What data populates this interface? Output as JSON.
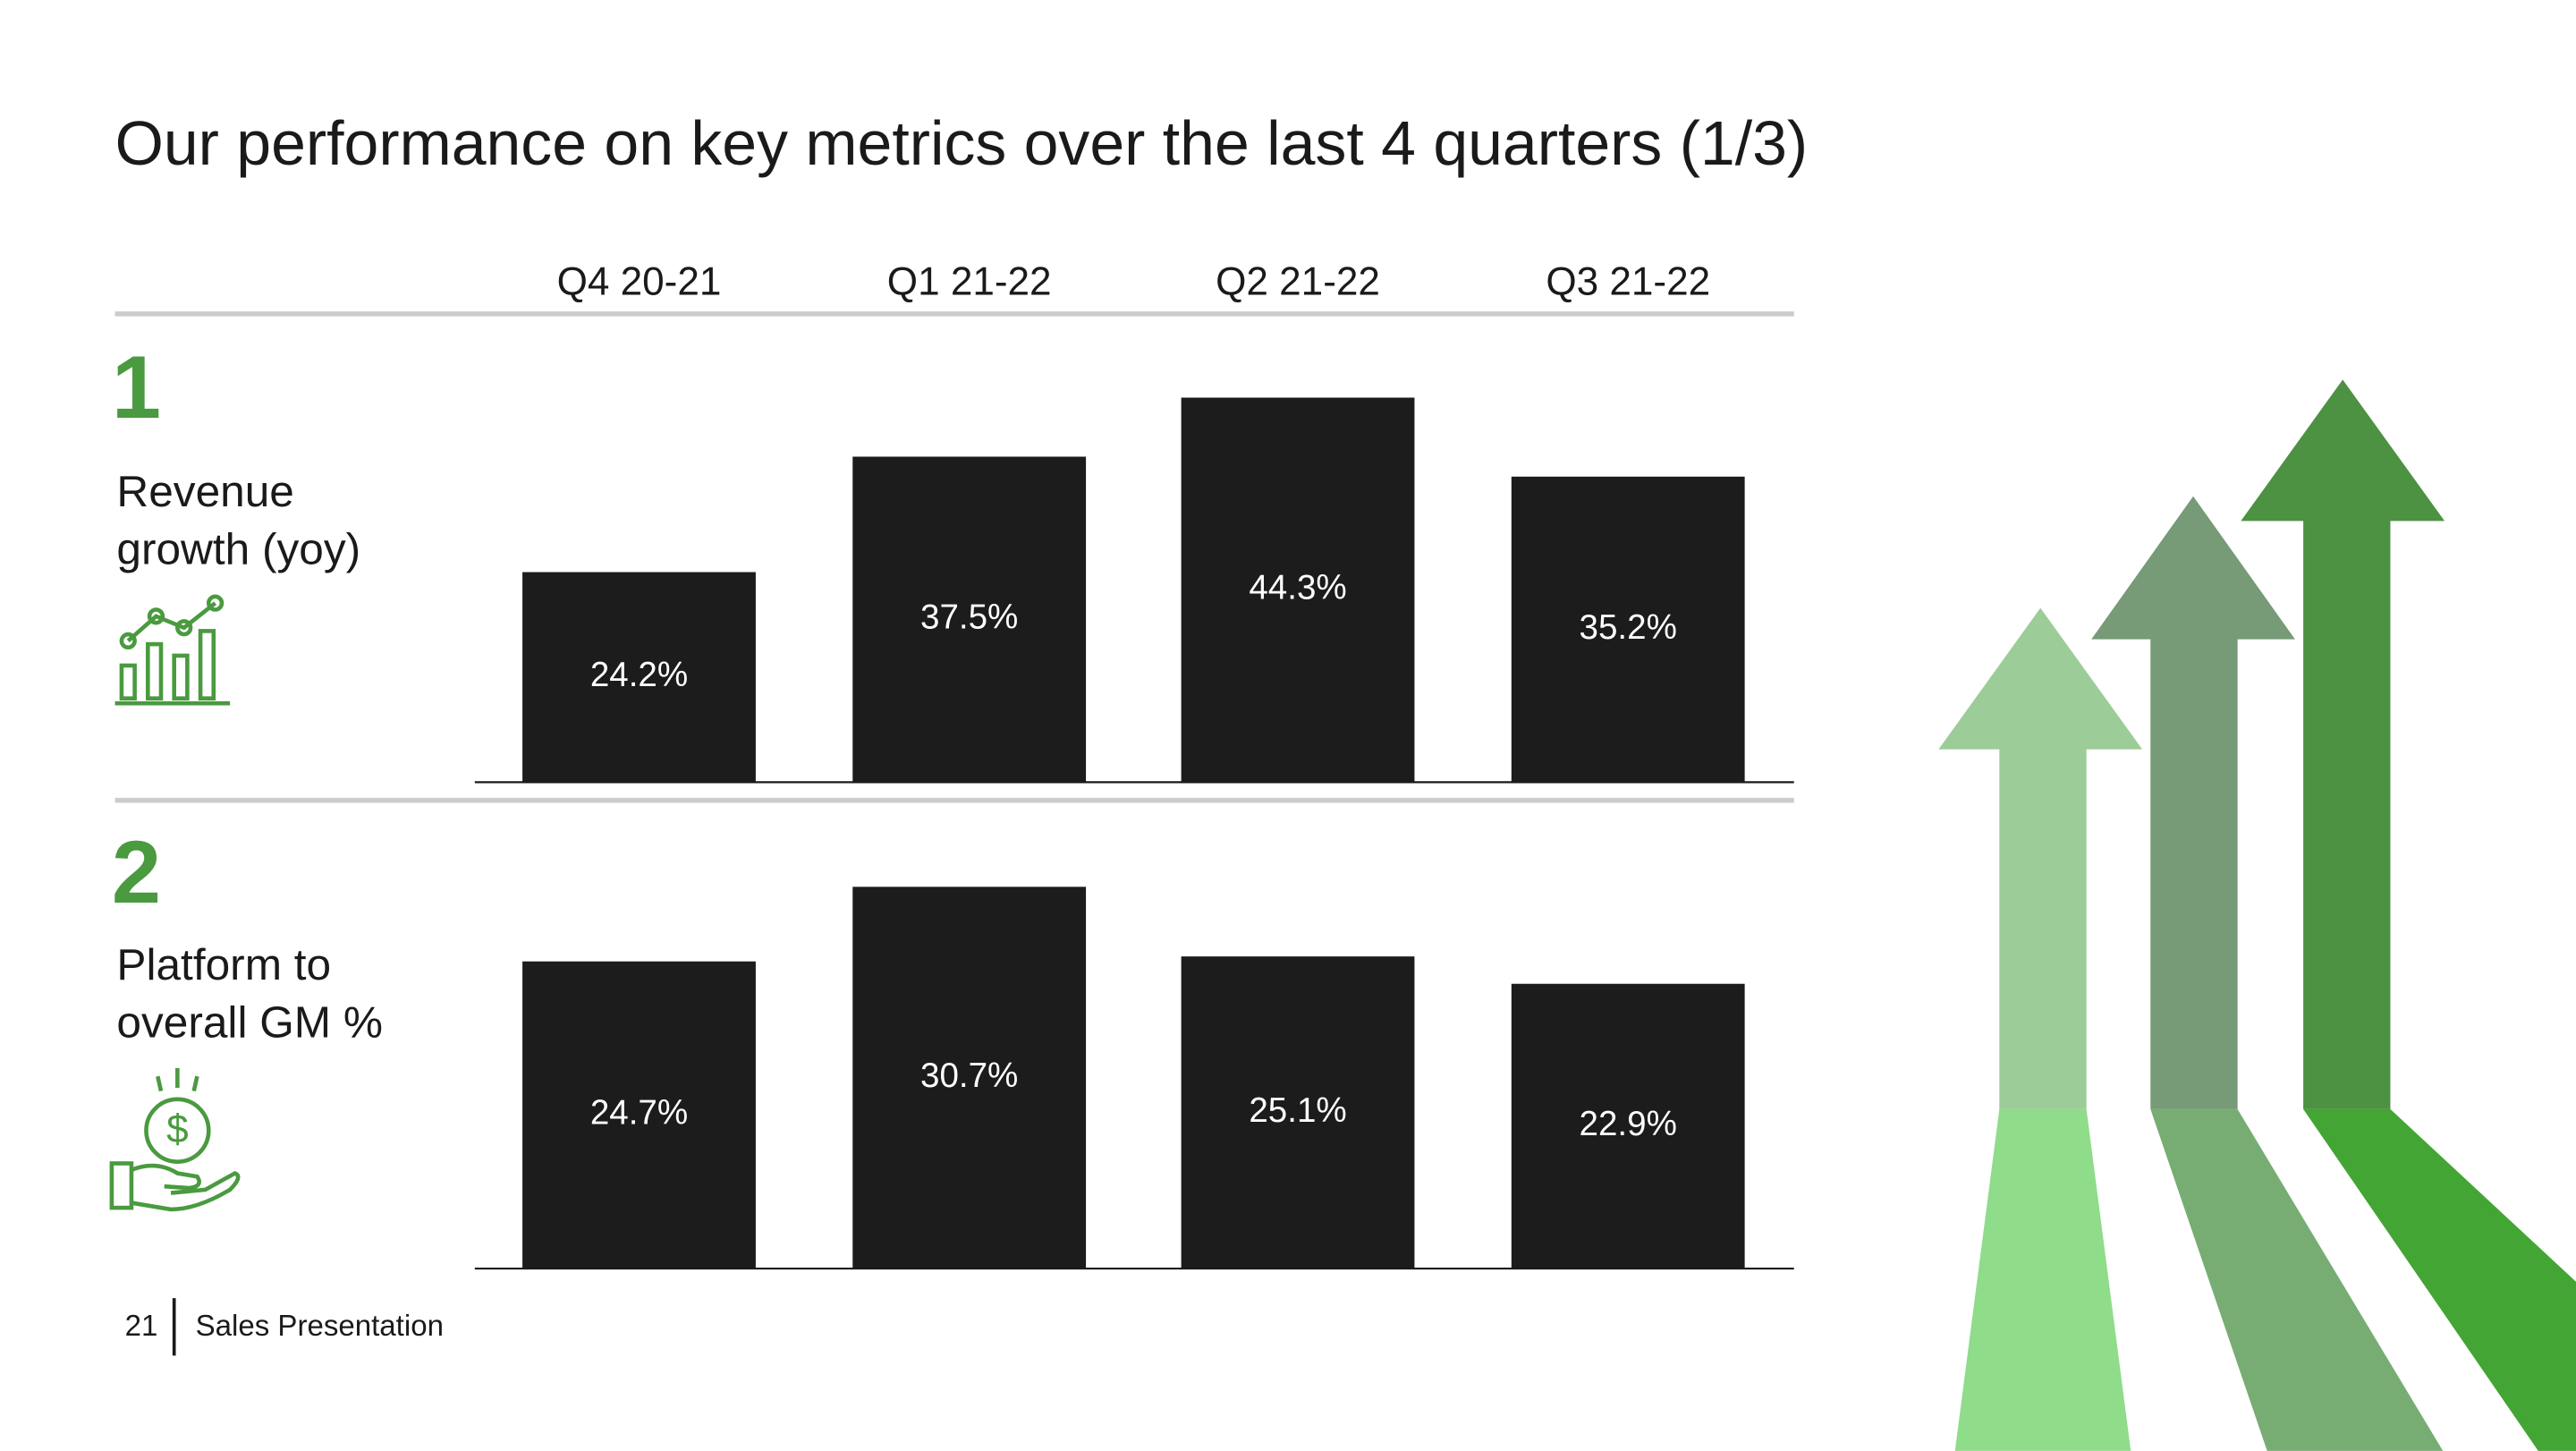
{
  "title": "Our performance on key metrics over the last 4 quarters (1/3)",
  "footer": {
    "page": "21",
    "text": "Sales Presentation"
  },
  "chart_data": [
    {
      "type": "bar",
      "number": "1",
      "label_lines": [
        "Revenue",
        "growth (yoy)"
      ],
      "categories": [
        "Q4 20-21",
        "Q1 21-22",
        "Q2 21-22",
        "Q3 21-22"
      ],
      "values": [
        24.2,
        37.5,
        44.3,
        35.2
      ],
      "value_labels": [
        "24.2%",
        "37.5%",
        "44.3%",
        "35.2%"
      ],
      "color": "#1c1c1c",
      "ylim": [
        0,
        53
      ]
    },
    {
      "type": "bar",
      "number": "2",
      "label_lines": [
        "Platform to",
        "overall GM %"
      ],
      "values": [
        24.7,
        30.7,
        25.1,
        22.9
      ],
      "value_labels": [
        "24.7%",
        "30.7%",
        "25.1%",
        "22.9%"
      ],
      "color": "#1c1c1c",
      "ylim": [
        0,
        37
      ]
    }
  ]
}
